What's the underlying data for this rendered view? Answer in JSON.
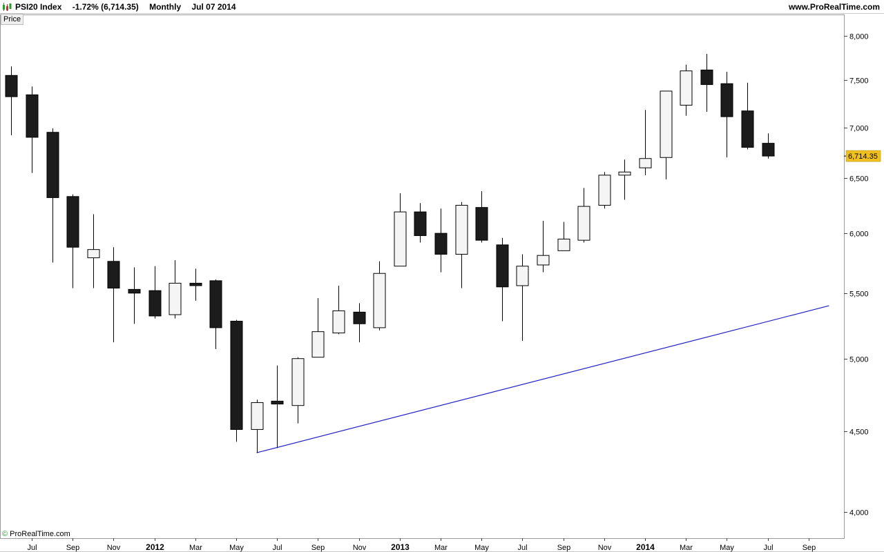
{
  "header": {
    "symbol": "PSI20 Index",
    "change": "-1.72% (6,714.35)",
    "period": "Monthly",
    "date": "Jul 07 2014",
    "site": "www.ProRealTime.com"
  },
  "price_tab": "Price",
  "watermark": {
    "symbol": "©",
    "text": " ProRealTime.com"
  },
  "colors": {
    "up_fill": "#f5f5f5",
    "down_fill": "#1c1c1c",
    "trendline": "#2020c8",
    "last_price_badge": "#f0c020"
  },
  "chart_data": {
    "type": "candlestick",
    "title": "",
    "y_scale": "log",
    "ylim": [
      3850,
      8250
    ],
    "y_ticks": [
      {
        "value": 4000,
        "label": "4,000"
      },
      {
        "value": 4500,
        "label": "4,500"
      },
      {
        "value": 5000,
        "label": "5,000"
      },
      {
        "value": 5500,
        "label": "5,500"
      },
      {
        "value": 6000,
        "label": "6,000"
      },
      {
        "value": 6500,
        "label": "6,500"
      },
      {
        "value": 7000,
        "label": "7,000"
      },
      {
        "value": 7500,
        "label": "7,500"
      },
      {
        "value": 8000,
        "label": "8,000"
      }
    ],
    "x_ticks": [
      {
        "date": "2011-07",
        "label": "Jul",
        "bold": false
      },
      {
        "date": "2011-09",
        "label": "Sep",
        "bold": false
      },
      {
        "date": "2011-11",
        "label": "Nov",
        "bold": false
      },
      {
        "date": "2012-01",
        "label": "2012",
        "bold": true
      },
      {
        "date": "2012-03",
        "label": "Mar",
        "bold": false
      },
      {
        "date": "2012-05",
        "label": "May",
        "bold": false
      },
      {
        "date": "2012-07",
        "label": "Jul",
        "bold": false
      },
      {
        "date": "2012-09",
        "label": "Sep",
        "bold": false
      },
      {
        "date": "2012-11",
        "label": "Nov",
        "bold": false
      },
      {
        "date": "2013-01",
        "label": "2013",
        "bold": true
      },
      {
        "date": "2013-03",
        "label": "Mar",
        "bold": false
      },
      {
        "date": "2013-05",
        "label": "May",
        "bold": false
      },
      {
        "date": "2013-07",
        "label": "Jul",
        "bold": false
      },
      {
        "date": "2013-09",
        "label": "Sep",
        "bold": false
      },
      {
        "date": "2013-11",
        "label": "Nov",
        "bold": false
      },
      {
        "date": "2014-01",
        "label": "2014",
        "bold": true
      },
      {
        "date": "2014-03",
        "label": "Mar",
        "bold": false
      },
      {
        "date": "2014-05",
        "label": "May",
        "bold": false
      },
      {
        "date": "2014-07",
        "label": "Jul",
        "bold": false
      },
      {
        "date": "2014-09",
        "label": "Sep",
        "bold": false
      }
    ],
    "candles": [
      {
        "date": "2011-06",
        "open": 7550,
        "high": 7650,
        "low": 6920,
        "close": 7320
      },
      {
        "date": "2011-07",
        "open": 7340,
        "high": 7430,
        "low": 6550,
        "close": 6900
      },
      {
        "date": "2011-08",
        "open": 6950,
        "high": 6990,
        "low": 5750,
        "close": 6320
      },
      {
        "date": "2011-09",
        "open": 6330,
        "high": 6350,
        "low": 5540,
        "close": 5880
      },
      {
        "date": "2011-10",
        "open": 5790,
        "high": 6170,
        "low": 5540,
        "close": 5860
      },
      {
        "date": "2011-11",
        "open": 5760,
        "high": 5880,
        "low": 5120,
        "close": 5540
      },
      {
        "date": "2011-12",
        "open": 5530,
        "high": 5710,
        "low": 5260,
        "close": 5500
      },
      {
        "date": "2012-01",
        "open": 5520,
        "high": 5720,
        "low": 5300,
        "close": 5320
      },
      {
        "date": "2012-02",
        "open": 5330,
        "high": 5770,
        "low": 5300,
        "close": 5580
      },
      {
        "date": "2012-03",
        "open": 5580,
        "high": 5700,
        "low": 5440,
        "close": 5560
      },
      {
        "date": "2012-04",
        "open": 5600,
        "high": 5610,
        "low": 5070,
        "close": 5230
      },
      {
        "date": "2012-05",
        "open": 5280,
        "high": 5290,
        "low": 4430,
        "close": 4510
      },
      {
        "date": "2012-06",
        "open": 4510,
        "high": 4710,
        "low": 4360,
        "close": 4690
      },
      {
        "date": "2012-07",
        "open": 4700,
        "high": 4950,
        "low": 4390,
        "close": 4680
      },
      {
        "date": "2012-08",
        "open": 4670,
        "high": 5010,
        "low": 4550,
        "close": 5000
      },
      {
        "date": "2012-09",
        "open": 5010,
        "high": 5460,
        "low": 5010,
        "close": 5200
      },
      {
        "date": "2012-10",
        "open": 5190,
        "high": 5560,
        "low": 5180,
        "close": 5360
      },
      {
        "date": "2012-11",
        "open": 5350,
        "high": 5420,
        "low": 5120,
        "close": 5260
      },
      {
        "date": "2012-12",
        "open": 5230,
        "high": 5760,
        "low": 5210,
        "close": 5660
      },
      {
        "date": "2013-01",
        "open": 5720,
        "high": 6360,
        "low": 5720,
        "close": 6190
      },
      {
        "date": "2013-02",
        "open": 6190,
        "high": 6270,
        "low": 5920,
        "close": 5980
      },
      {
        "date": "2013-03",
        "open": 6000,
        "high": 6220,
        "low": 5670,
        "close": 5820
      },
      {
        "date": "2013-04",
        "open": 5820,
        "high": 6280,
        "low": 5540,
        "close": 6250
      },
      {
        "date": "2013-05",
        "open": 6230,
        "high": 6380,
        "low": 5920,
        "close": 5940
      },
      {
        "date": "2013-06",
        "open": 5900,
        "high": 5960,
        "low": 5280,
        "close": 5550
      },
      {
        "date": "2013-07",
        "open": 5560,
        "high": 5820,
        "low": 5130,
        "close": 5720
      },
      {
        "date": "2013-08",
        "open": 5730,
        "high": 6110,
        "low": 5670,
        "close": 5810
      },
      {
        "date": "2013-09",
        "open": 5850,
        "high": 6100,
        "low": 5850,
        "close": 5950
      },
      {
        "date": "2013-10",
        "open": 5940,
        "high": 6410,
        "low": 5920,
        "close": 6240
      },
      {
        "date": "2013-11",
        "open": 6250,
        "high": 6560,
        "low": 6220,
        "close": 6530
      },
      {
        "date": "2013-12",
        "open": 6530,
        "high": 6680,
        "low": 6300,
        "close": 6560
      },
      {
        "date": "2014-01",
        "open": 6600,
        "high": 7180,
        "low": 6530,
        "close": 6690
      },
      {
        "date": "2014-02",
        "open": 6700,
        "high": 7380,
        "low": 6490,
        "close": 7380
      },
      {
        "date": "2014-03",
        "open": 7230,
        "high": 7670,
        "low": 7120,
        "close": 7600
      },
      {
        "date": "2014-04",
        "open": 7610,
        "high": 7790,
        "low": 7160,
        "close": 7450
      },
      {
        "date": "2014-05",
        "open": 7460,
        "high": 7590,
        "low": 6700,
        "close": 7110
      },
      {
        "date": "2014-06",
        "open": 7170,
        "high": 7470,
        "low": 6780,
        "close": 6800
      },
      {
        "date": "2014-07",
        "open": 6840,
        "high": 6940,
        "low": 6690,
        "close": 6714.35
      }
    ],
    "trendline": {
      "from": {
        "date": "2012-06",
        "value": 4360
      },
      "to": {
        "date": "2014-10",
        "value": 5400
      }
    },
    "last_price": {
      "value": 6714.35,
      "label": "6,714.35"
    }
  }
}
